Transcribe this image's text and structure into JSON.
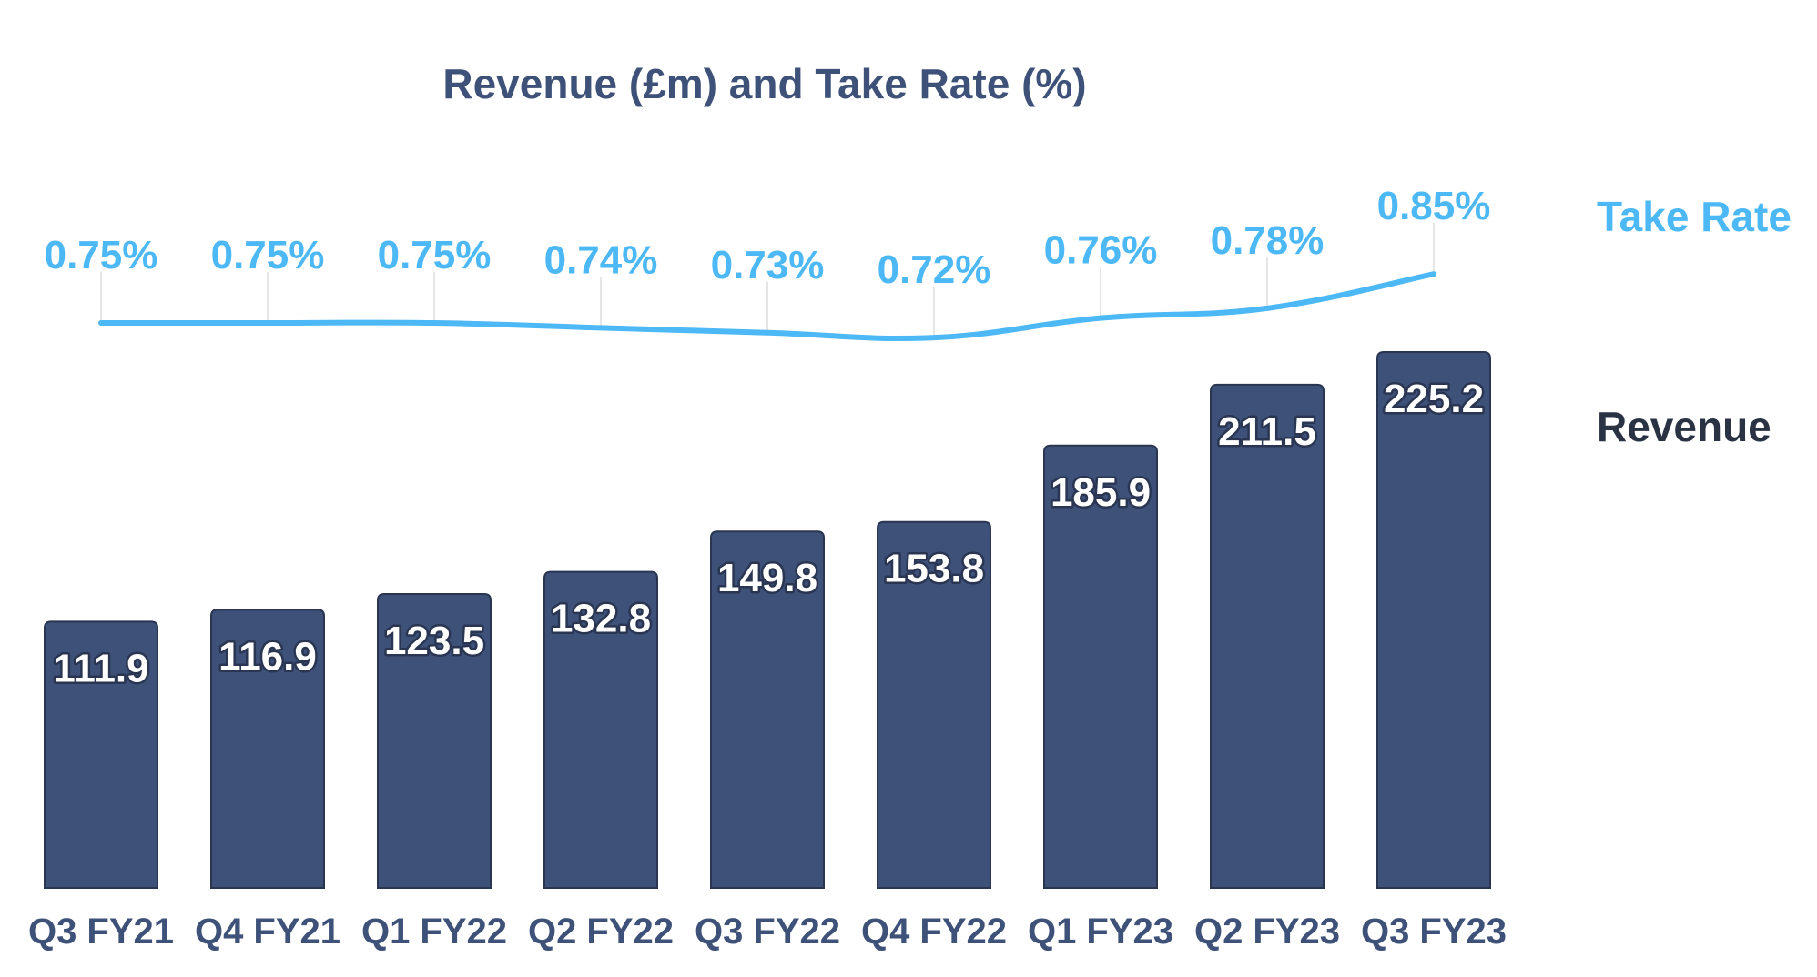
{
  "chart_data": {
    "type": "bar",
    "title": "Revenue (£m) and Take Rate (%)",
    "xlabel": "",
    "ylabel": "",
    "categories": [
      "Q3 FY21",
      "Q4 FY21",
      "Q1 FY22",
      "Q2 FY22",
      "Q3 FY22",
      "Q4 FY22",
      "Q1 FY23",
      "Q2 FY23",
      "Q3 FY23"
    ],
    "series": [
      {
        "name": "Revenue",
        "type": "bar",
        "unit": "£m",
        "values": [
          111.9,
          116.9,
          123.5,
          132.8,
          149.8,
          153.8,
          185.9,
          211.5,
          225.2
        ],
        "labels": [
          "111.9",
          "116.9",
          "123.5",
          "132.8",
          "149.8",
          "153.8",
          "185.9",
          "211.5",
          "225.2"
        ],
        "color": "#3d5179"
      },
      {
        "name": "Take Rate",
        "type": "line",
        "unit": "%",
        "values": [
          0.75,
          0.75,
          0.75,
          0.74,
          0.73,
          0.72,
          0.76,
          0.78,
          0.85
        ],
        "labels": [
          "0.75%",
          "0.75%",
          "0.75%",
          "0.74%",
          "0.73%",
          "0.72%",
          "0.76%",
          "0.78%",
          "0.85%"
        ],
        "color": "#4cb8f5"
      }
    ],
    "ylim": [
      0,
      225.2
    ],
    "grid": false,
    "legend": {
      "position": "right",
      "entries": [
        {
          "label": "Take Rate",
          "color": "#4cb8f5"
        },
        {
          "label": "Revenue",
          "color": "#2a3344"
        }
      ]
    }
  }
}
